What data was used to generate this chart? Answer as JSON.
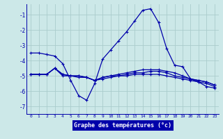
{
  "title": "Graphe des températures (°c)",
  "background_color": "#cce8e8",
  "grid_color": "#aacccc",
  "label_bg_color": "#0000aa",
  "line_color": "#0000aa",
  "x_values": [
    0,
    1,
    2,
    3,
    4,
    5,
    6,
    7,
    8,
    9,
    10,
    11,
    12,
    13,
    14,
    15,
    16,
    17,
    18,
    19,
    20,
    21,
    22,
    23
  ],
  "series1": [
    -3.5,
    -3.5,
    -3.6,
    -3.7,
    -4.2,
    -5.3,
    -6.3,
    -6.6,
    -5.5,
    -3.9,
    -3.3,
    -2.7,
    -2.1,
    -1.4,
    -0.7,
    -0.6,
    -1.5,
    -3.2,
    -4.3,
    -4.4,
    -5.2,
    -5.4,
    -5.7,
    -5.8
  ],
  "series2": [
    -4.9,
    -4.9,
    -4.9,
    -4.5,
    -4.9,
    -5.0,
    -5.0,
    -5.1,
    -5.3,
    -5.1,
    -5.0,
    -4.9,
    -4.8,
    -4.7,
    -4.6,
    -4.6,
    -4.6,
    -4.7,
    -4.8,
    -5.0,
    -5.2,
    -5.3,
    -5.4,
    -5.6
  ],
  "series3": [
    -4.9,
    -4.9,
    -4.9,
    -4.5,
    -4.9,
    -5.0,
    -5.0,
    -5.1,
    -5.3,
    -5.1,
    -5.0,
    -5.0,
    -4.9,
    -4.8,
    -4.8,
    -4.7,
    -4.7,
    -4.8,
    -5.0,
    -5.1,
    -5.2,
    -5.3,
    -5.4,
    -5.6
  ],
  "series4": [
    -4.9,
    -4.9,
    -4.9,
    -4.5,
    -5.0,
    -5.0,
    -5.1,
    -5.1,
    -5.3,
    -5.2,
    -5.1,
    -5.0,
    -5.0,
    -4.9,
    -4.9,
    -4.9,
    -4.9,
    -5.0,
    -5.1,
    -5.2,
    -5.3,
    -5.4,
    -5.5,
    -5.7
  ],
  "ylim": [
    -7.5,
    -0.3
  ],
  "xlim": [
    -0.5,
    23.5
  ],
  "yticks": [
    -7,
    -6,
    -5,
    -4,
    -3,
    -2,
    -1
  ],
  "xticks": [
    0,
    1,
    2,
    3,
    4,
    5,
    6,
    7,
    8,
    9,
    10,
    11,
    12,
    13,
    14,
    15,
    16,
    17,
    18,
    19,
    20,
    21,
    22,
    23
  ],
  "xlabel_fontsize": 6.0,
  "ytick_fontsize": 5.5,
  "xtick_fontsize": 4.5
}
